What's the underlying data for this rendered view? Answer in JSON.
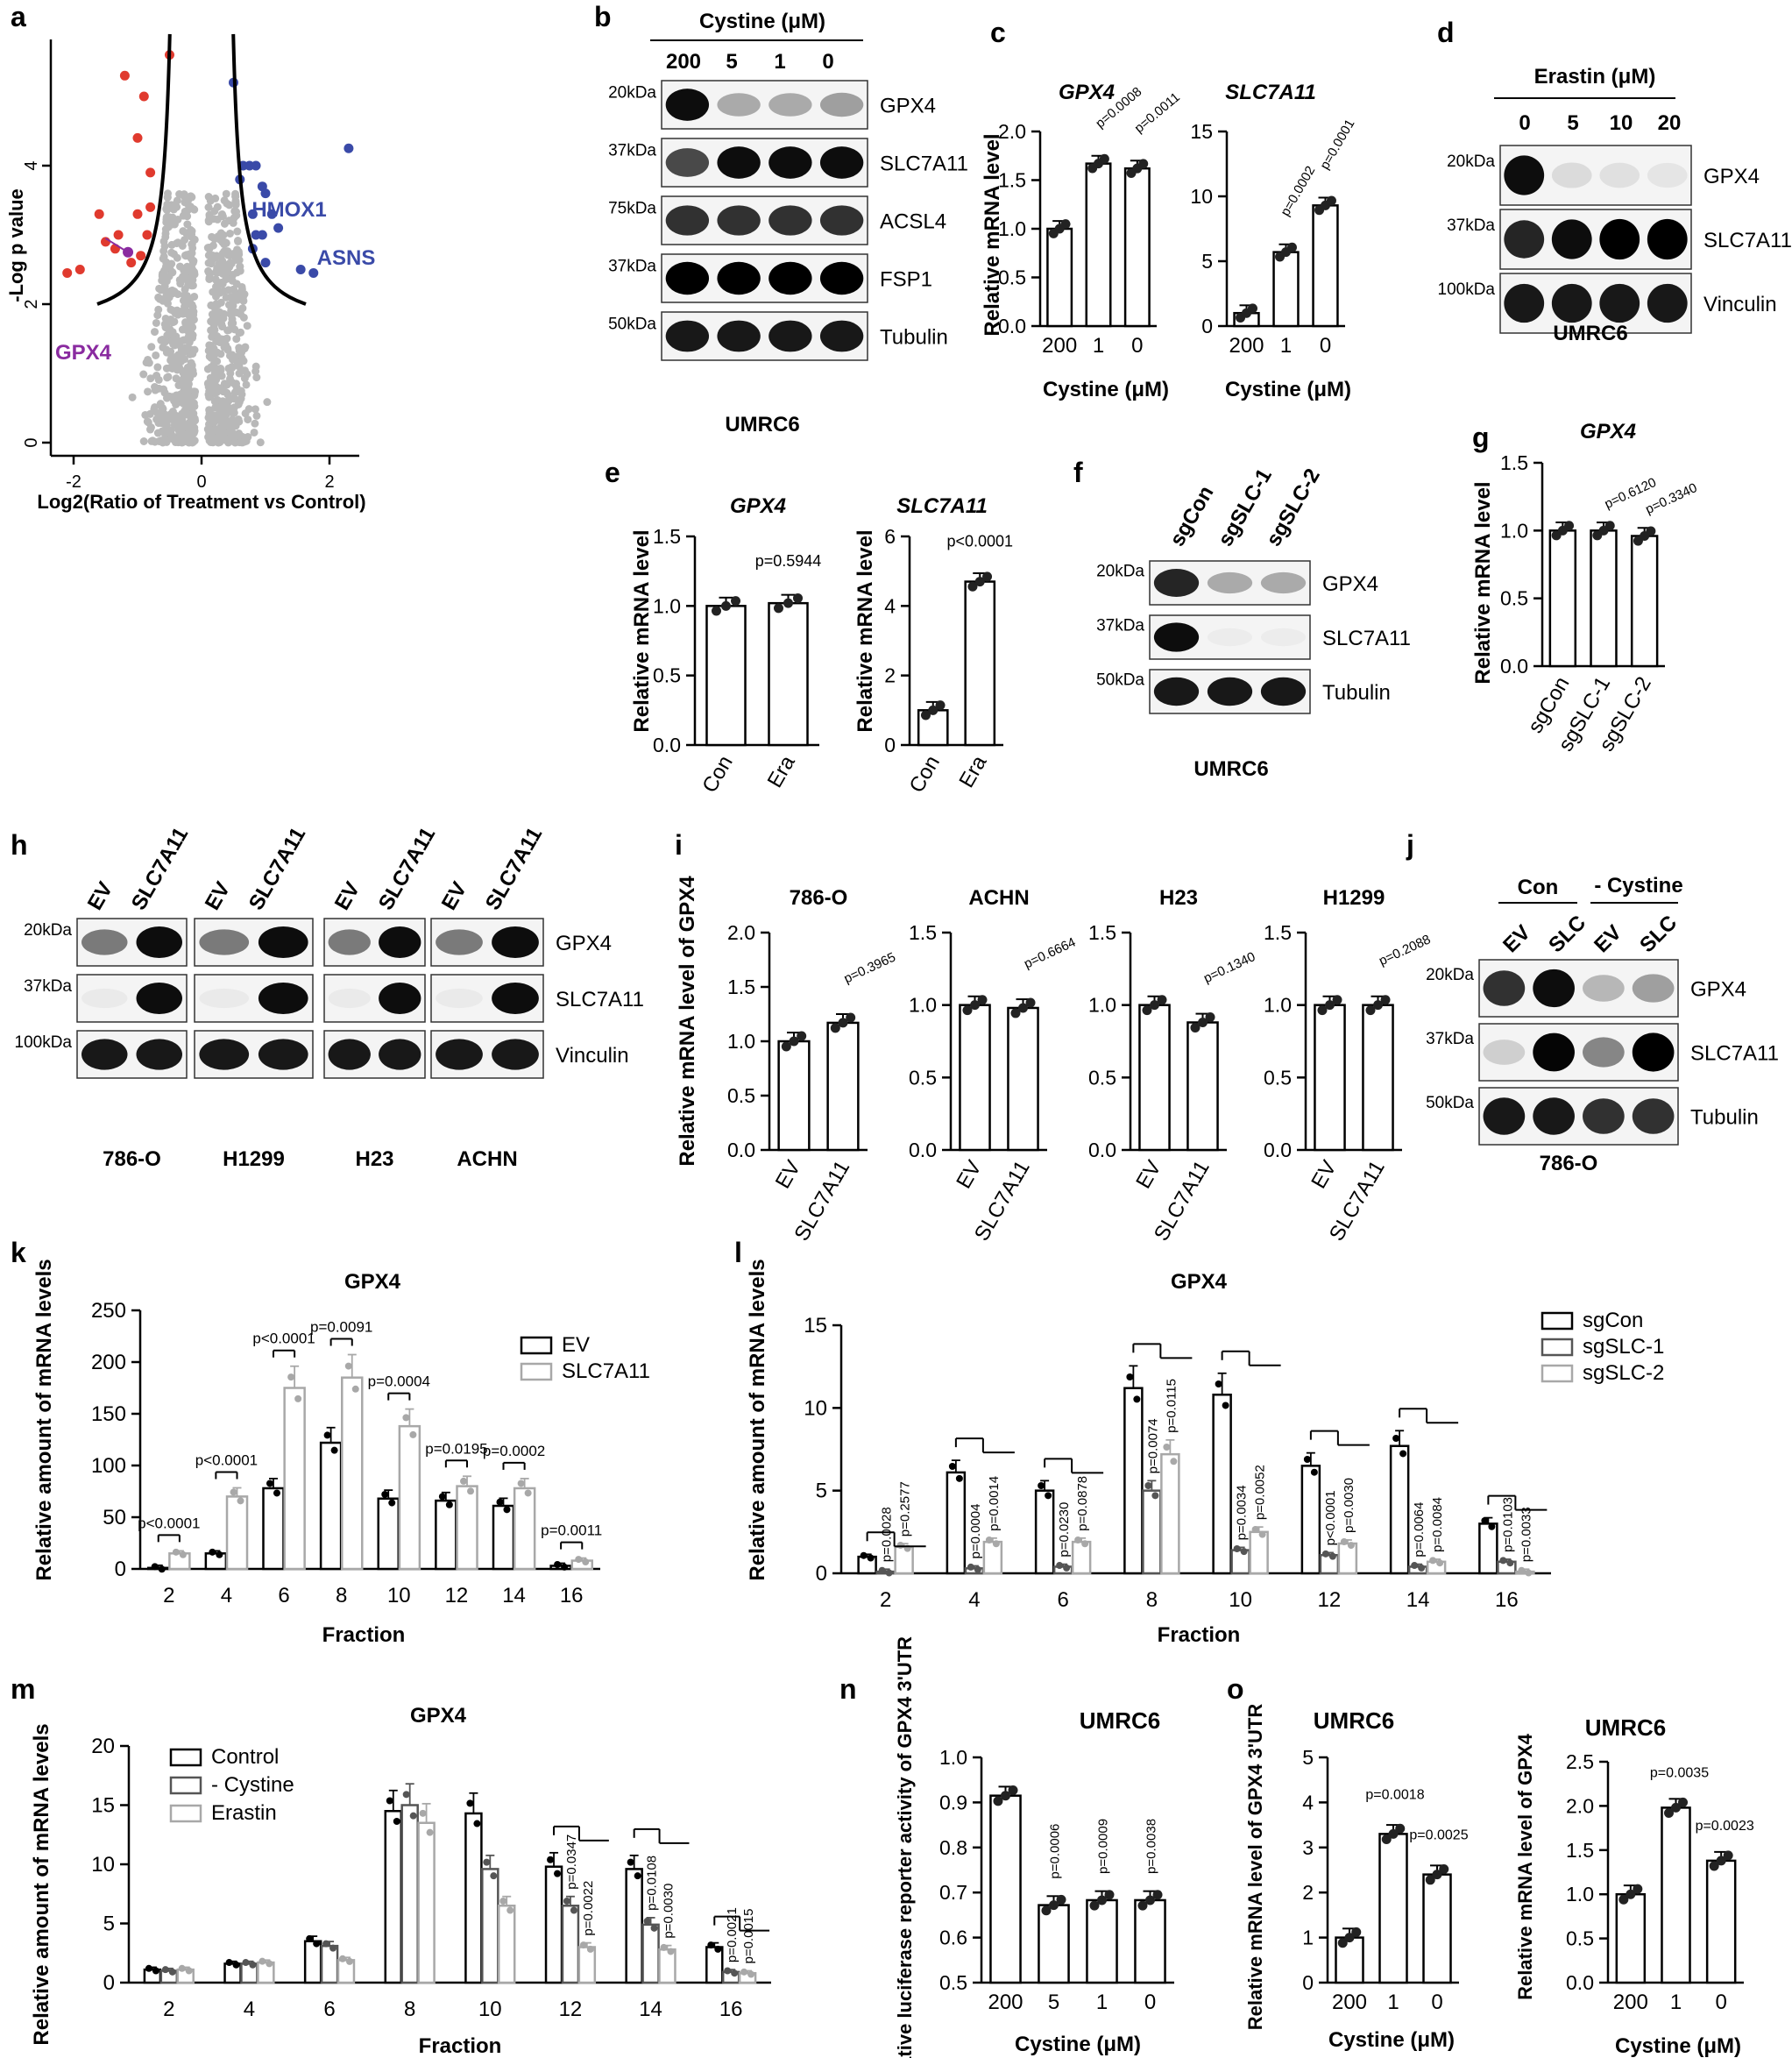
{
  "panels": {
    "a": "a",
    "b": "b",
    "c": "c",
    "d": "d",
    "e": "e",
    "f": "f",
    "g": "g",
    "h": "h",
    "i": "i",
    "j": "j",
    "k": "k",
    "l": "l",
    "m": "m",
    "n": "n",
    "o": "o"
  },
  "pa": {
    "xlabel": "Log2(Ratio of Treatment vs Control)",
    "ylabel": "-Log p value",
    "xticks": [
      "-2",
      "0",
      "2"
    ],
    "yticks": [
      "0",
      "2",
      "4"
    ],
    "labels": {
      "hmox1": "HMOX1",
      "asns": "ASNS",
      "gpx4": "GPX4"
    },
    "colors": {
      "up": "#3a4aa8",
      "down": "#e03a2e",
      "gpx4": "#8a2ba0",
      "other": "#b8b8b8"
    }
  },
  "pb": {
    "title": "Cystine (μM)",
    "lanes": [
      "200",
      "5",
      "1",
      "0"
    ],
    "rows": [
      {
        "kda": "20kDa",
        "name": "GPX4"
      },
      {
        "kda": "37kDa",
        "name": "SLC7A11"
      },
      {
        "kda": "75kDa",
        "name": "ACSL4"
      },
      {
        "kda": "37kDa",
        "name": "FSP1"
      },
      {
        "kda": "50kDa",
        "name": "Tubulin"
      }
    ],
    "cell": "UMRC6"
  },
  "pc": {
    "ylabel": "Relative mRNA level",
    "xlabel": "Cystine (μM)",
    "g1": {
      "title": "GPX4",
      "cats": [
        "200",
        "1",
        "0"
      ],
      "values": [
        1.0,
        1.67,
        1.62
      ],
      "ylim": [
        0,
        2.0
      ],
      "yticks": [
        "0.0",
        "0.5",
        "1.0",
        "1.5",
        "2.0"
      ],
      "pvals": [
        "p=0.0008",
        "p=0.0011"
      ]
    },
    "g2": {
      "title": "SLC7A11",
      "cats": [
        "200",
        "1",
        "0"
      ],
      "values": [
        1.0,
        5.7,
        9.3
      ],
      "ylim": [
        0,
        15
      ],
      "yticks": [
        "0",
        "5",
        "10",
        "15"
      ],
      "pvals": [
        "p=0.0002",
        "p=0.0001"
      ]
    }
  },
  "pd": {
    "title": "Erastin (μM)",
    "lanes": [
      "0",
      "5",
      "10",
      "20"
    ],
    "rows": [
      {
        "kda": "20kDa",
        "name": "GPX4"
      },
      {
        "kda": "37kDa",
        "name": "SLC7A11"
      },
      {
        "kda": "100kDa",
        "name": "Vinculin"
      }
    ],
    "cell": "UMRC6"
  },
  "pe": {
    "ylabel": "Relative mRNA level",
    "g1": {
      "title": "GPX4",
      "cats": [
        "Con",
        "Era"
      ],
      "values": [
        1.0,
        1.02
      ],
      "ylim": [
        0,
        1.5
      ],
      "yticks": [
        "0.0",
        "0.5",
        "1.0",
        "1.5"
      ],
      "pval": "p=0.5944"
    },
    "g2": {
      "title": "SLC7A11",
      "cats": [
        "Con",
        "Era"
      ],
      "values": [
        1.0,
        4.7
      ],
      "ylim": [
        0,
        6
      ],
      "yticks": [
        "0",
        "2",
        "4",
        "6"
      ],
      "pval": "p<0.0001"
    }
  },
  "pf": {
    "lanes": [
      "sgCon",
      "sgSLC-1",
      "sgSLC-2"
    ],
    "rows": [
      {
        "kda": "20kDa",
        "name": "GPX4"
      },
      {
        "kda": "37kDa",
        "name": "SLC7A11"
      },
      {
        "kda": "50kDa",
        "name": "Tubulin"
      }
    ],
    "cell": "UMRC6"
  },
  "pg": {
    "title": "GPX4",
    "ylabel": "Relative mRNA level",
    "cats": [
      "sgCon",
      "sgSLC-1",
      "sgSLC-2"
    ],
    "values": [
      1.0,
      1.0,
      0.96
    ],
    "ylim": [
      0,
      1.5
    ],
    "yticks": [
      "0.0",
      "0.5",
      "1.0",
      "1.5"
    ],
    "pvals": [
      "p=0.6120",
      "p=0.3340"
    ]
  },
  "ph": {
    "groups": [
      "786-O",
      "H1299",
      "H23",
      "ACHN"
    ],
    "lanes": [
      "EV",
      "SLC7A11"
    ],
    "rows": [
      {
        "kda": "20kDa",
        "name": "GPX4"
      },
      {
        "kda": "37kDa",
        "name": "SLC7A11"
      },
      {
        "kda": "100kDa",
        "name": "Vinculin"
      }
    ]
  },
  "pi": {
    "ylabel": "Relative mRNA level of GPX4",
    "cats": [
      "EV",
      "SLC7A11"
    ],
    "graphs": [
      {
        "title": "786-O",
        "values": [
          1.0,
          1.17
        ],
        "ylim": [
          0,
          2.0
        ],
        "yticks": [
          "0.0",
          "0.5",
          "1.0",
          "1.5",
          "2.0"
        ],
        "pval": "p=0.3965"
      },
      {
        "title": "ACHN",
        "values": [
          1.0,
          0.98
        ],
        "ylim": [
          0,
          1.5
        ],
        "yticks": [
          "0.0",
          "0.5",
          "1.0",
          "1.5"
        ],
        "pval": "p=0.6664"
      },
      {
        "title": "H23",
        "values": [
          1.0,
          0.88
        ],
        "ylim": [
          0,
          1.5
        ],
        "yticks": [
          "0.0",
          "0.5",
          "1.0",
          "1.5"
        ],
        "pval": "p=0.1340"
      },
      {
        "title": "H1299",
        "values": [
          1.0,
          1.0
        ],
        "ylim": [
          0,
          1.5
        ],
        "yticks": [
          "0.0",
          "0.5",
          "1.0",
          "1.5"
        ],
        "pval": "p=0.2088"
      }
    ]
  },
  "pj": {
    "groups": [
      "Con",
      "- Cystine"
    ],
    "lanes": [
      "EV",
      "SLC",
      "EV",
      "SLC"
    ],
    "rows": [
      {
        "kda": "20kDa",
        "name": "GPX4"
      },
      {
        "kda": "37kDa",
        "name": "SLC7A11"
      },
      {
        "kda": "50kDa",
        "name": "Tubulin"
      }
    ],
    "cell": "786-O"
  },
  "pk": {
    "title": "GPX4",
    "ylabel": "Relative amount of mRNA levels",
    "xlabel": "Fraction",
    "cats": [
      "2",
      "4",
      "6",
      "8",
      "10",
      "12",
      "14",
      "16"
    ],
    "ylim": [
      0,
      250
    ],
    "yticks": [
      "0",
      "50",
      "100",
      "150",
      "200",
      "250"
    ],
    "series": [
      {
        "name": "EV",
        "values": [
          1,
          15,
          78,
          122,
          68,
          66,
          61,
          3
        ]
      },
      {
        "name": "SLC7A11",
        "values": [
          15,
          70,
          175,
          185,
          138,
          80,
          78,
          8
        ]
      }
    ],
    "pvals": [
      "p<0.0001",
      "p<0.0001",
      "p<0.0001",
      "p=0.0091",
      "p=0.0004",
      "p=0.0195",
      "p=0.0002",
      "p=0.0011"
    ]
  },
  "pl": {
    "title": "GPX4",
    "ylabel": "Relative amount of mRNA levels",
    "xlabel": "Fraction",
    "cats": [
      "2",
      "4",
      "6",
      "8",
      "10",
      "12",
      "14",
      "16"
    ],
    "ylim": [
      0,
      15
    ],
    "yticks": [
      "0",
      "5",
      "10",
      "15"
    ],
    "series": [
      {
        "name": "sgCon",
        "values": [
          1.0,
          6.1,
          5.0,
          11.2,
          10.8,
          6.5,
          7.7,
          3.0
        ]
      },
      {
        "name": "sgSLC-1",
        "values": [
          0.1,
          0.3,
          0.4,
          5.0,
          1.4,
          1.1,
          0.4,
          0.7
        ]
      },
      {
        "name": "sgSLC-2",
        "values": [
          1.6,
          1.9,
          1.9,
          7.2,
          2.5,
          1.8,
          0.7,
          0.1
        ]
      }
    ],
    "pvals": [
      "p=0.0028",
      "p=0.2577",
      "p=0.0004",
      "p=0.0014",
      "p=0.0230",
      "p=0.0878",
      "p=0.0074",
      "p=0.0115",
      "p=0.0034",
      "p=0.0052",
      "p<0.0001",
      "p=0.0030",
      "p=0.0064",
      "p=0.0084",
      "p=0.0103",
      "p=0.0033"
    ]
  },
  "pm": {
    "title": "GPX4",
    "ylabel": "Relative amount of mRNA levels",
    "xlabel": "Fraction",
    "cats": [
      "2",
      "4",
      "6",
      "8",
      "10",
      "12",
      "14",
      "16"
    ],
    "ylim": [
      0,
      20
    ],
    "yticks": [
      "0",
      "5",
      "10",
      "15",
      "20"
    ],
    "series": [
      {
        "name": "Control",
        "values": [
          1.1,
          1.6,
          3.5,
          14.5,
          14.3,
          9.8,
          9.6,
          3.0
        ]
      },
      {
        "name": "- Cystine",
        "values": [
          1.0,
          1.6,
          3.1,
          15.0,
          9.6,
          6.5,
          4.9,
          0.9
        ]
      },
      {
        "name": "Erastin",
        "values": [
          1.1,
          1.7,
          1.9,
          13.5,
          6.5,
          3.0,
          2.8,
          0.8
        ]
      }
    ],
    "pvals": [
      "p=0.0347",
      "p=0.0022",
      "p=0.0108",
      "p=0.0030",
      "p=0.0021",
      "p=0.0015"
    ]
  },
  "pn": {
    "title": "UMRC6",
    "ylabel": "Relative luciferase reporter activity of GPX4 3'UTR",
    "xlabel": "Cystine (μM)",
    "cats": [
      "200",
      "5",
      "1",
      "0"
    ],
    "values": [
      0.915,
      0.672,
      0.683,
      0.683
    ],
    "ylim": [
      0.5,
      1.0
    ],
    "yticks": [
      "0.5",
      "0.6",
      "0.7",
      "0.8",
      "0.9",
      "1.0"
    ],
    "pvals": [
      "p=0.0006",
      "p=0.0009",
      "p=0.0038"
    ]
  },
  "po": {
    "g1": {
      "title": "UMRC6",
      "ylabel": "Relative mRNA level of GPX4 3'UTR",
      "xlabel": "Cystine (μM)",
      "cats": [
        "200",
        "1",
        "0"
      ],
      "values": [
        1.0,
        3.3,
        2.4
      ],
      "ylim": [
        0,
        5
      ],
      "yticks": [
        "0",
        "1",
        "2",
        "3",
        "4",
        "5"
      ],
      "pvals": [
        "p=0.0018",
        "p=0.0025"
      ]
    },
    "g2": {
      "title": "UMRC6",
      "ylabel": "Relative mRNA level of GPX4",
      "xlabel": "Cystine (μM)",
      "cats": [
        "200",
        "1",
        "0"
      ],
      "values": [
        1.0,
        1.98,
        1.38
      ],
      "ylim": [
        0,
        2.5
      ],
      "yticks": [
        "0.0",
        "0.5",
        "1.0",
        "1.5",
        "2.0",
        "2.5"
      ],
      "pvals": [
        "p=0.0035",
        "p=0.0023"
      ]
    }
  }
}
